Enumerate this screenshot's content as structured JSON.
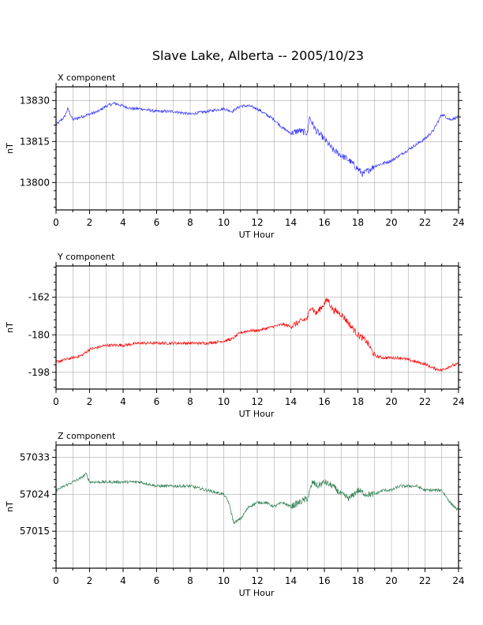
{
  "title": "Slave Lake, Alberta -- 2005/10/23",
  "chart_data": [
    {
      "type": "line",
      "panel_label": "X component",
      "xlabel": "UT Hour",
      "ylabel": "nT",
      "xlim": [
        0,
        24
      ],
      "ylim": [
        13790,
        13835
      ],
      "xticks": [
        0,
        2,
        4,
        6,
        8,
        10,
        12,
        14,
        16,
        18,
        20,
        22,
        24
      ],
      "yticks": [
        13800,
        13815,
        13830
      ],
      "grid": true,
      "color": "#3333ff",
      "series": [
        {
          "x": [
            0,
            0.5,
            0.7,
            1,
            1.5,
            2,
            2.5,
            3,
            3.5,
            4,
            4.5,
            5,
            6,
            7,
            8,
            9,
            10,
            10.5,
            11,
            11.5,
            12,
            12.5,
            13,
            13.5,
            14,
            14.5,
            15,
            15.1,
            15.5,
            16,
            16.5,
            17,
            17.5,
            18,
            18.3,
            18.5,
            19,
            19.5,
            20,
            20.5,
            21,
            21.5,
            22,
            22.5,
            23,
            23.5,
            24
          ],
          "values": [
            13821,
            13824,
            13827,
            13823,
            13824,
            13825,
            13826,
            13828,
            13829,
            13828,
            13827,
            13827,
            13826,
            13826,
            13825,
            13826,
            13827,
            13826,
            13828,
            13828,
            13827,
            13825,
            13823,
            13820,
            13818,
            13819,
            13818,
            13824,
            13819,
            13816,
            13812,
            13810,
            13808,
            13805,
            13803,
            13804,
            13806,
            13807,
            13808,
            13810,
            13812,
            13814,
            13816,
            13819,
            13825,
            13823,
            13824
          ]
        }
      ]
    },
    {
      "type": "line",
      "panel_label": "Y component",
      "xlabel": "UT Hour",
      "ylabel": "nT",
      "xlim": [
        0,
        24
      ],
      "ylim": [
        -206,
        -147
      ],
      "xticks": [
        0,
        2,
        4,
        6,
        8,
        10,
        12,
        14,
        16,
        18,
        20,
        22,
        24
      ],
      "yticks": [
        -198,
        -180,
        -162
      ],
      "grid": true,
      "color": "#ff0000",
      "series": [
        {
          "x": [
            0,
            0.5,
            1,
            1.5,
            2,
            2.5,
            3,
            3.5,
            4,
            5,
            6,
            7,
            8,
            9,
            10,
            10.5,
            11,
            11.5,
            12,
            12.5,
            13,
            13.5,
            14,
            14.5,
            15,
            15.2,
            15.5,
            16,
            16.2,
            16.5,
            17,
            17.5,
            18,
            18.5,
            19,
            19.5,
            20,
            20.5,
            21,
            21.5,
            22,
            22.5,
            23,
            23.5,
            24
          ],
          "values": [
            -193,
            -192,
            -191,
            -190,
            -187,
            -186,
            -185,
            -185,
            -185,
            -184,
            -184,
            -184,
            -184,
            -184,
            -183,
            -182,
            -179,
            -178,
            -178,
            -177,
            -176,
            -175,
            -176,
            -174,
            -172,
            -166,
            -170,
            -165,
            -163,
            -168,
            -170,
            -175,
            -180,
            -183,
            -190,
            -191,
            -191,
            -191,
            -192,
            -193,
            -194,
            -196,
            -197,
            -195,
            -194
          ]
        }
      ]
    },
    {
      "type": "line",
      "panel_label": "Z component",
      "xlabel": "UT Hour",
      "ylabel": "nT",
      "xlim": [
        0,
        24
      ],
      "ylim": [
        57006,
        57036
      ],
      "xticks": [
        0,
        2,
        4,
        6,
        8,
        10,
        12,
        14,
        16,
        18,
        20,
        22,
        24
      ],
      "yticks": [
        57015,
        57024,
        57033
      ],
      "grid": true,
      "color": "#2e7d4f",
      "series": [
        {
          "x": [
            0,
            0.5,
            1,
            1.5,
            1.8,
            2,
            2.5,
            3,
            4,
            5,
            6,
            7,
            8,
            9,
            10,
            10.3,
            10.6,
            11,
            11.5,
            12,
            12.5,
            13,
            13.5,
            14,
            14.5,
            15,
            15.3,
            15.6,
            16,
            16.5,
            17,
            17.5,
            18,
            18.5,
            19,
            19.5,
            20,
            20.5,
            21,
            21.5,
            22,
            22.5,
            23,
            23.5,
            24
          ],
          "values": [
            57025,
            57026,
            57027,
            57028,
            57029,
            57027,
            57027,
            57027,
            57027,
            57027,
            57026,
            57026,
            57026,
            57025,
            57024,
            57022,
            57017,
            57018,
            57021,
            57022,
            57022,
            57021,
            57022,
            57021,
            57022,
            57023,
            57027,
            57026,
            57027,
            57026,
            57024,
            57023,
            57025,
            57024,
            57024,
            57025,
            57025,
            57026,
            57026,
            57026,
            57025,
            57025,
            57025,
            57022,
            57020
          ]
        }
      ]
    }
  ]
}
